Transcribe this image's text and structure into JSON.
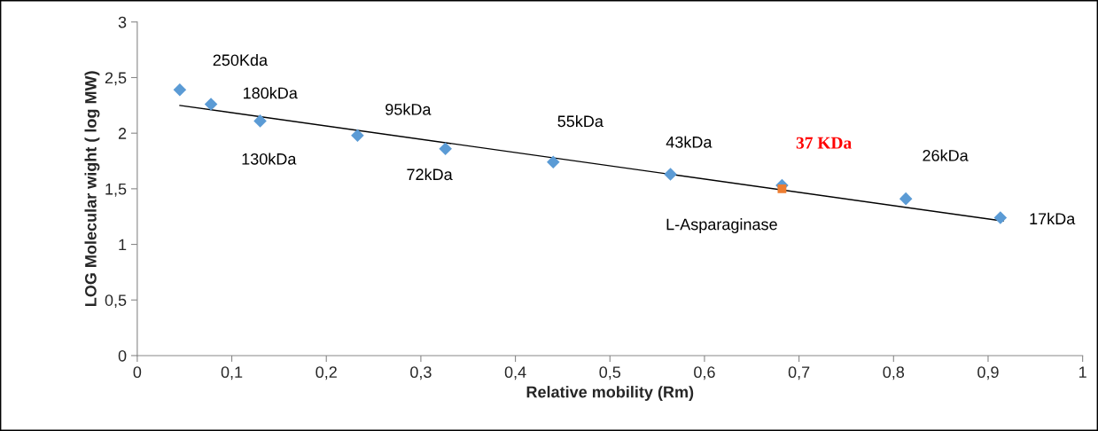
{
  "chart_data": {
    "type": "scatter",
    "xlabel": "Relative mobility (Rm)",
    "ylabel": "LOG Molecular wight ( log MW)",
    "series": [
      {
        "color": "#5b9bd5",
        "marker": "diamond",
        "x": [
          0.045,
          0.078,
          0.13,
          0.233,
          0.326,
          0.44,
          0.564,
          0.682,
          0.813,
          0.913
        ],
        "values": [
          2.39,
          2.26,
          2.11,
          1.98,
          1.86,
          1.74,
          1.63,
          1.53,
          1.41,
          1.24
        ]
      },
      {
        "color": "#ed7d31",
        "marker": "square",
        "x": [
          0.682
        ],
        "values": [
          1.5
        ]
      },
      {
        "type": "line",
        "color": "#000000",
        "marker": "none",
        "x": [
          0.045,
          0.916
        ],
        "values": [
          2.25,
          1.21
        ]
      }
    ],
    "annotations": [
      {
        "text": "250Kda",
        "x": 0.045,
        "y": 2.39
      },
      {
        "text": "180kDa",
        "x": 0.078,
        "y": 2.26
      },
      {
        "text": "130kDa",
        "x": 0.13,
        "y": 2.11
      },
      {
        "text": "95kDa",
        "x": 0.233,
        "y": 1.98
      },
      {
        "text": "72kDa",
        "x": 0.326,
        "y": 1.86
      },
      {
        "text": "55kDa",
        "x": 0.44,
        "y": 1.74
      },
      {
        "text": "43kDa",
        "x": 0.564,
        "y": 1.63
      },
      {
        "text": "37 KDa",
        "x": 0.682,
        "y": 1.5
      },
      {
        "text": "L-Asparaginase",
        "x": 0.682,
        "y": 1.5
      },
      {
        "text": "26kDa",
        "x": 0.813,
        "y": 1.41
      },
      {
        "text": "17kDa",
        "x": 0.913,
        "y": 1.24
      }
    ],
    "xlim": [
      0,
      1
    ],
    "xticks": [
      0,
      {
        "value": 0.1,
        "label": "0,1"
      },
      {
        "value": 0.2,
        "label": "0,2"
      },
      {
        "value": 0.3,
        "label": "0,3"
      },
      {
        "value": 0.4,
        "label": "0,4"
      },
      {
        "value": 0.5,
        "label": "0,5"
      },
      {
        "value": 0.6,
        "label": "0,6"
      },
      {
        "value": 0.7,
        "label": "0,7"
      },
      {
        "value": 0.8,
        "label": "0,8"
      },
      {
        "value": 0.9,
        "label": "0,9"
      },
      1
    ],
    "ylim": [
      0,
      3
    ],
    "yticks": [
      0,
      {
        "value": 0.5,
        "label": "0,5"
      },
      1,
      {
        "value": 1.5,
        "label": "1,5"
      },
      2,
      {
        "value": 2.5,
        "label": "2,5"
      },
      3
    ],
    "grid": false,
    "legend": false
  }
}
